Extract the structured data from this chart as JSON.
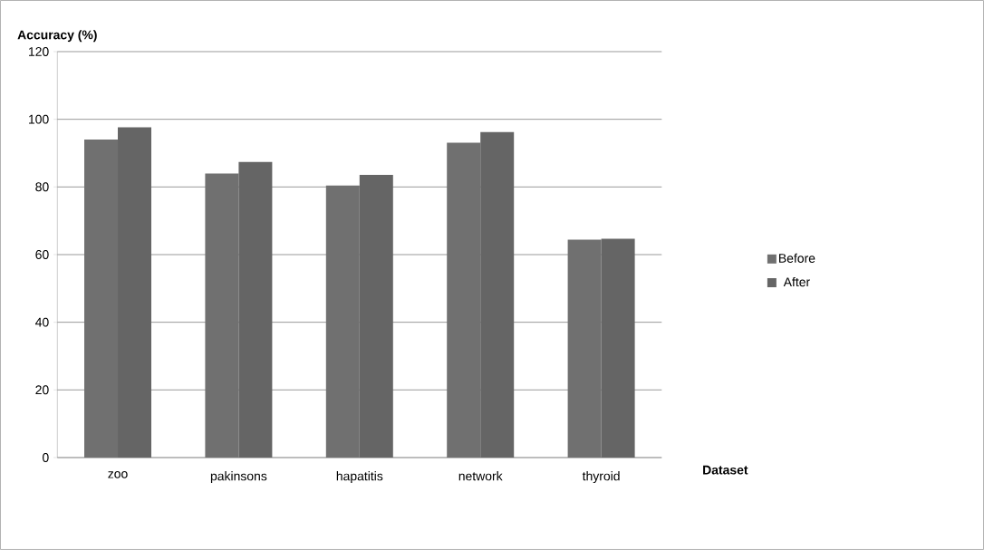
{
  "chart_data": {
    "type": "bar",
    "xlabel": "Dataset",
    "ylabel": "Accuracy (%)",
    "categories": [
      "zoo",
      "pakinsons",
      "hapatitis",
      "network",
      "thyroid"
    ],
    "series": [
      {
        "name": "Before",
        "color": "#707070",
        "values": [
          94,
          84,
          80.4,
          93.1,
          64.4
        ]
      },
      {
        "name": "After",
        "color": "#656565",
        "values": [
          97.6,
          87.4,
          83.6,
          96.2,
          64.7
        ]
      }
    ],
    "ylim": [
      0,
      120
    ],
    "yticks": [
      0,
      20,
      40,
      60,
      80,
      100,
      120
    ],
    "grid": "y",
    "legend": "right"
  }
}
